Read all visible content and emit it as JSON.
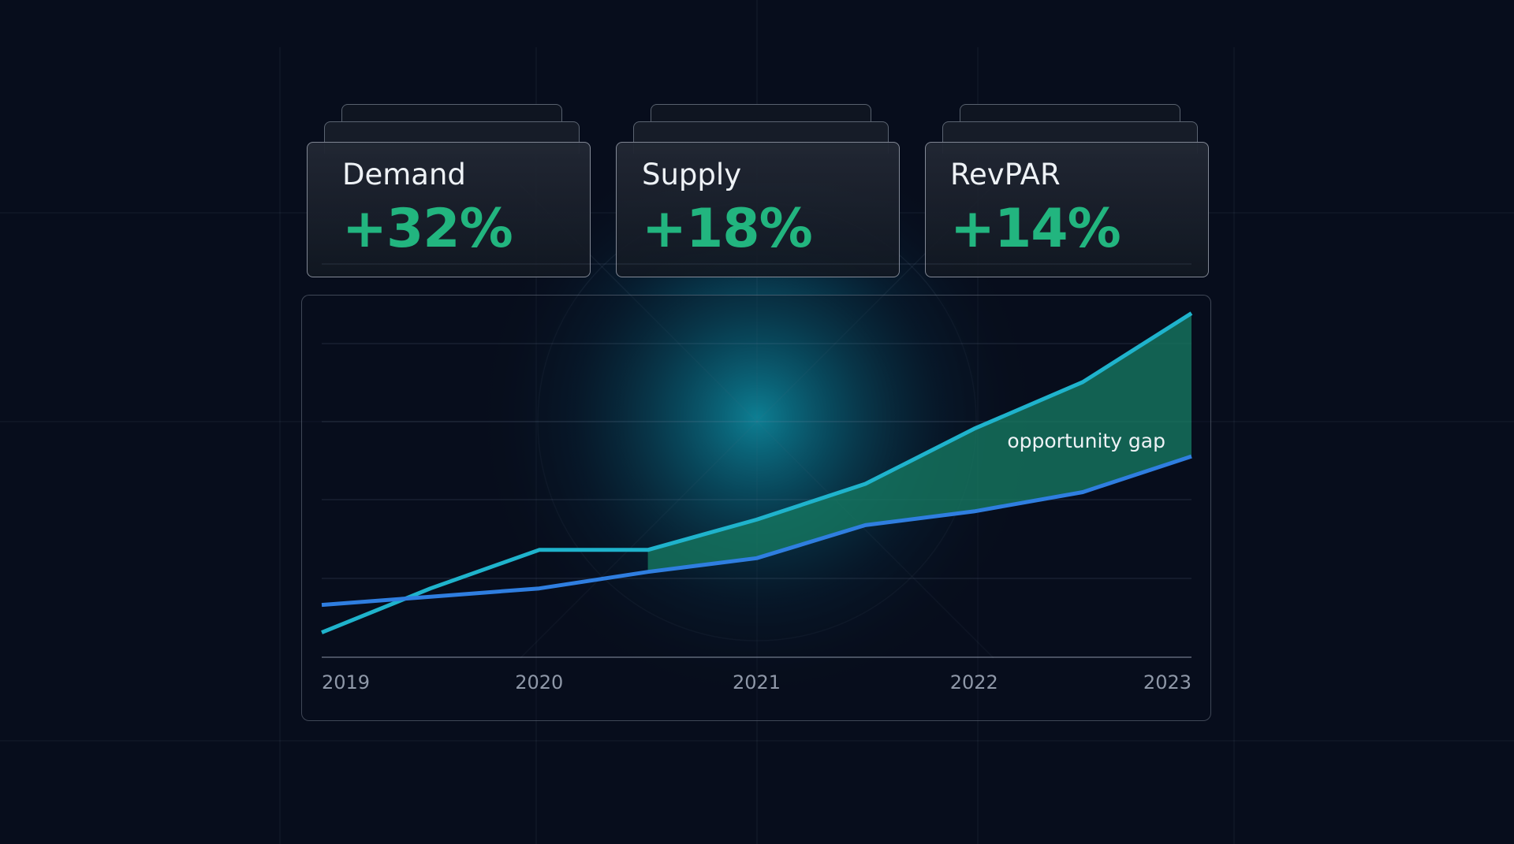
{
  "cards": [
    {
      "label": "Demand",
      "value": "+32%"
    },
    {
      "label": "Supply",
      "value": "+18%"
    },
    {
      "label": "RevPAR",
      "value": "+14%"
    }
  ],
  "colors": {
    "background": "#070d1c",
    "value_green": "#22b57f",
    "line_cyan": "#1fb3cc",
    "line_blue": "#2f7ee0",
    "gap_fill": "#167a62"
  },
  "chart_data": {
    "type": "line",
    "x": [
      2019,
      2019.5,
      2020,
      2020.5,
      2021,
      2021.5,
      2022,
      2022.5,
      2023
    ],
    "x_ticks": [
      "2019",
      "2020",
      "2021",
      "2022",
      "2023"
    ],
    "series": [
      {
        "values": [
          9,
          25,
          39,
          39,
          50,
          63,
          83,
          100,
          125
        ]
      },
      {
        "values": [
          19,
          22,
          25,
          31,
          36,
          48,
          53,
          60,
          73
        ]
      }
    ],
    "ylim": [
      0,
      130
    ],
    "annotation": "opportunity gap",
    "gap_from_x": 2020.5,
    "grid": true
  }
}
